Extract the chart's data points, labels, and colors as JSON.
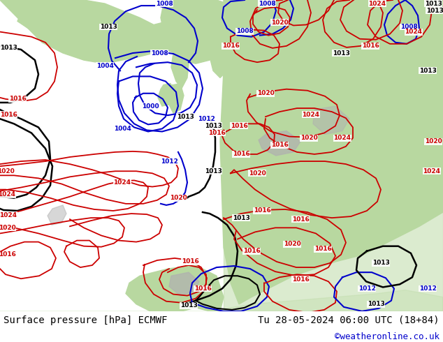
{
  "title_left": "Surface pressure [hPa] ECMWF",
  "title_right": "Tu 28-05-2024 06:00 UTC (18+84)",
  "credit": "©weatheronline.co.uk",
  "bg_color": "#ffffff",
  "sea_color": "#e0e4ec",
  "land_green": "#b8d8a0",
  "land_gray": "#b0b0b0",
  "bottom_bar_color": "#f0f0f0",
  "title_fontsize": 10,
  "credit_fontsize": 9,
  "credit_color": "#0000cc",
  "red": "#cc0000",
  "blue": "#0000cc",
  "black": "#000000"
}
